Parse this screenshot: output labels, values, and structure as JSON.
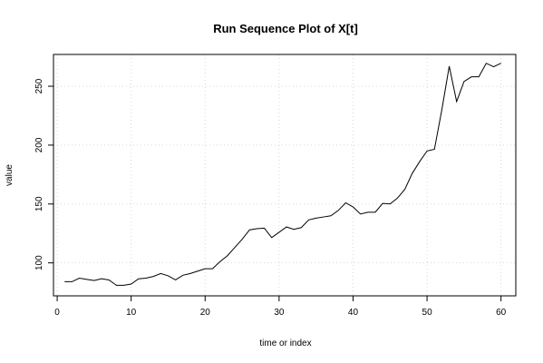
{
  "chart_data": {
    "type": "line",
    "title": "Run Sequence Plot of X[t]",
    "xlabel": "time or index",
    "ylabel": "value",
    "xlim": [
      -0.5,
      62
    ],
    "ylim": [
      72,
      277
    ],
    "x_ticks": [
      0,
      10,
      20,
      30,
      40,
      50,
      60
    ],
    "y_ticks": [
      100,
      150,
      200,
      250
    ],
    "grid": true,
    "series": [
      {
        "x": [
          1,
          2,
          3,
          4,
          5,
          6,
          7,
          8,
          9,
          10,
          11,
          12,
          13,
          14,
          15,
          16,
          17,
          18,
          19,
          20,
          21,
          22,
          23,
          24,
          25,
          26,
          27,
          28,
          29,
          30,
          31,
          32,
          33,
          34,
          35,
          36,
          37,
          38,
          39,
          40,
          41,
          42,
          43,
          44,
          45,
          46,
          47,
          48,
          49,
          50,
          51,
          52,
          53,
          54,
          55,
          56,
          57,
          58,
          59,
          60
        ],
        "values": [
          84,
          84,
          87,
          86,
          85,
          86.5,
          85.5,
          81,
          81,
          82,
          86.5,
          87,
          88.5,
          91,
          89,
          85.5,
          89.5,
          91,
          93,
          95,
          95,
          101,
          106,
          113,
          120,
          128,
          129,
          129.5,
          121.5,
          126,
          130.5,
          128.5,
          130,
          136.5,
          138,
          139,
          140,
          144.5,
          151,
          147.5,
          141.5,
          143,
          143,
          150.5,
          150,
          155,
          162.5,
          176,
          186,
          195,
          196.5,
          230,
          267,
          237,
          254,
          258,
          258,
          269.5,
          266.5,
          269.5
        ]
      }
    ]
  }
}
